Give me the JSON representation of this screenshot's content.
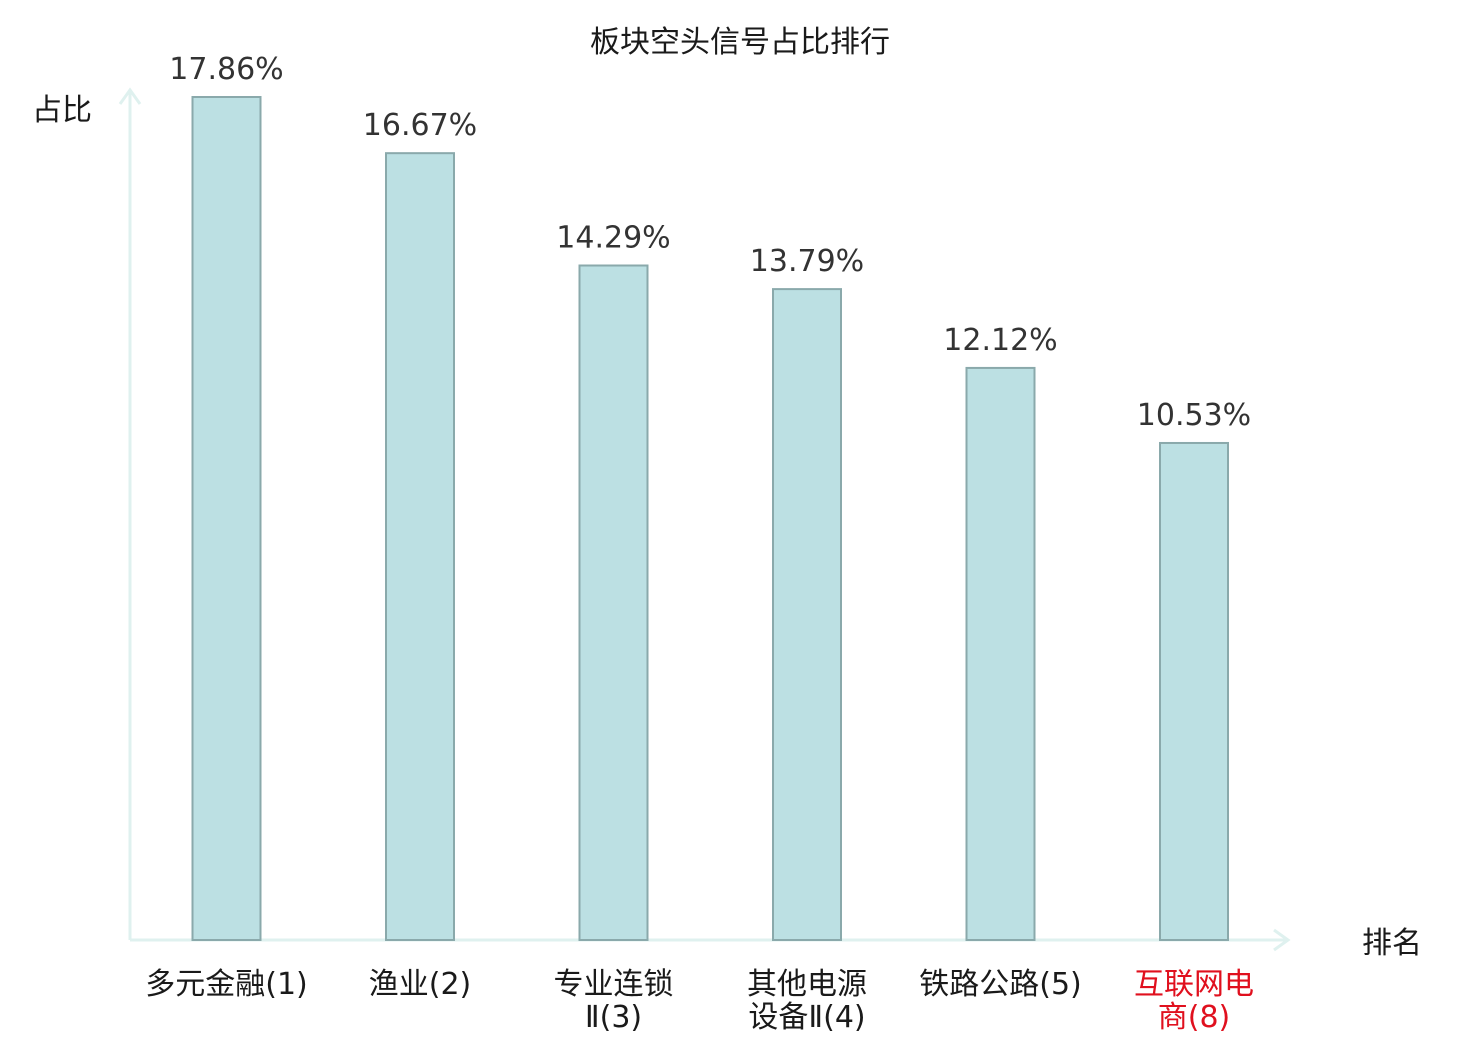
{
  "chart_data": {
    "type": "bar",
    "title": "板块空头信号占比排行",
    "ylabel": "占比",
    "xlabel": "排名",
    "categories": [
      {
        "lines": [
          "多元金融(1)"
        ],
        "highlight": false
      },
      {
        "lines": [
          "渔业(2)"
        ],
        "highlight": false
      },
      {
        "lines": [
          "专业连锁",
          "Ⅱ(3)"
        ],
        "highlight": false
      },
      {
        "lines": [
          "其他电源",
          "设备Ⅱ(4)"
        ],
        "highlight": false
      },
      {
        "lines": [
          "铁路公路(5)"
        ],
        "highlight": false
      },
      {
        "lines": [
          "互联网电",
          "商(8)"
        ],
        "highlight": true
      }
    ],
    "values": [
      17.86,
      16.67,
      14.29,
      13.79,
      12.12,
      10.53
    ],
    "value_labels": [
      "17.86%",
      "16.67%",
      "14.29%",
      "13.79%",
      "12.12%",
      "10.53%"
    ],
    "ylim": [
      0,
      17.86
    ],
    "grid": false,
    "colors": {
      "bar_fill": "#bce0e3",
      "bar_stroke": "#8aa9ab",
      "axis": "#dff1ef",
      "highlight_text": "#e0101e",
      "text": "#1a1a1a"
    }
  }
}
